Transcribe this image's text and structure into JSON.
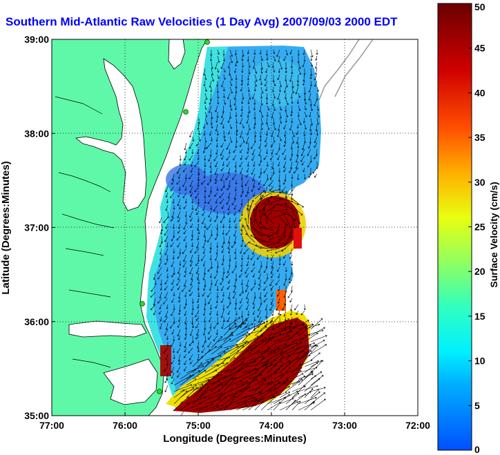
{
  "title": "Southern Mid-Atlantic Raw Velocities (1 Day Avg) 2007/09/03 2000 EDT",
  "axes": {
    "x": {
      "label": "Longitude (Degrees:Minutes)",
      "ticks": [
        "77:00",
        "76:00",
        "75:00",
        "74:00",
        "73:00",
        "72:00"
      ],
      "range": [
        -77,
        -72
      ]
    },
    "y": {
      "label": "Latitude (Degrees:Minutes)",
      "ticks": [
        "39:00",
        "38:00",
        "37:00",
        "36:00",
        "35:00"
      ],
      "range": [
        35,
        39
      ]
    },
    "grid": true
  },
  "colorbar": {
    "label": "Surface Velocity (cm/s)",
    "ticks": [
      "50",
      "45",
      "40",
      "35",
      "30",
      "25",
      "20",
      "15",
      "10",
      "5",
      "0"
    ],
    "range": [
      0,
      50
    ],
    "colors": [
      "#0050ff",
      "#00c8ff",
      "#20ffd0",
      "#c8ff20",
      "#ffd000",
      "#ff5000",
      "#d00000",
      "#700000"
    ]
  },
  "colors": {
    "land": "#5ff8a8",
    "coastline": "#000000",
    "bathymetry": "#999999",
    "site_marker": "#22dd22"
  }
}
